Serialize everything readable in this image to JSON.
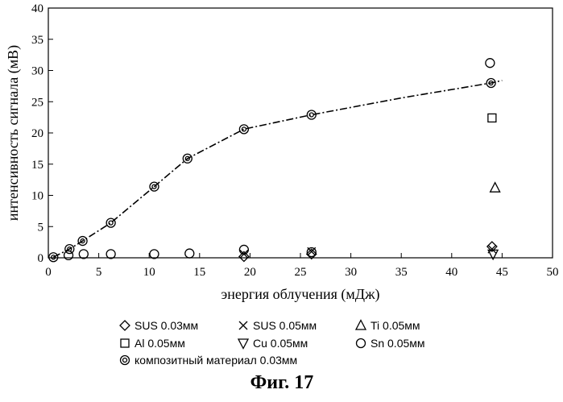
{
  "chart_data": {
    "type": "scatter",
    "title": "",
    "xlabel": "энергия облучения (мДж)",
    "ylabel": "интенсивность сигнала (мВ)",
    "xlim": [
      0,
      50
    ],
    "ylim": [
      0,
      40
    ],
    "x_ticks": [
      "0",
      "5",
      "10",
      "15",
      "20",
      "25",
      "30",
      "35",
      "40",
      "45",
      "50"
    ],
    "y_ticks": [
      "0",
      "5",
      "10",
      "15",
      "20",
      "25",
      "30",
      "35",
      "40"
    ],
    "grid": false,
    "legend_position": "bottom",
    "series": [
      {
        "name": "SUS  0.03мм",
        "marker": "diamond",
        "x": [
          19.4,
          26.1,
          44.0
        ],
        "y": [
          0.2,
          0.6,
          1.8
        ]
      },
      {
        "name": "SUS  0.05мм",
        "marker": "x",
        "x": [
          19.4,
          26.1,
          44.0
        ],
        "y": [
          0.6,
          1.0,
          1.4
        ]
      },
      {
        "name": "Ti  0.05мм",
        "marker": "triangle-up",
        "x": [
          44.3
        ],
        "y": [
          11.2
        ]
      },
      {
        "name": "Al  0.05мм",
        "marker": "square",
        "x": [
          44.0
        ],
        "y": [
          22.4
        ]
      },
      {
        "name": "Cu  0.05мм",
        "marker": "triangle-down",
        "x": [
          44.1
        ],
        "y": [
          0.6
        ]
      },
      {
        "name": "Sn  0.05мм",
        "marker": "circle",
        "x": [
          2.0,
          3.5,
          6.2,
          10.5,
          14.0,
          19.4,
          26.1,
          43.8
        ],
        "y": [
          0.4,
          0.6,
          0.6,
          0.6,
          0.7,
          1.3,
          0.9,
          31.2
        ]
      },
      {
        "name": "композитный материал  0.03мм",
        "marker": "double-circle",
        "x": [
          0.5,
          2.1,
          3.4,
          6.2,
          10.5,
          13.8,
          19.4,
          26.1,
          43.9
        ],
        "y": [
          0.1,
          1.4,
          2.7,
          5.6,
          11.4,
          15.9,
          20.6,
          22.9,
          28.0
        ]
      }
    ],
    "trend_line": {
      "style": "dash-dot",
      "x": [
        0.5,
        2.1,
        3.4,
        6.2,
        10.5,
        13.8,
        19.4,
        26.1,
        35.0,
        43.9,
        45.0
      ],
      "y": [
        0.1,
        1.4,
        2.7,
        5.6,
        11.4,
        15.9,
        20.6,
        22.9,
        25.6,
        28.0,
        28.4
      ]
    },
    "legend_rows": [
      [
        {
          "marker": "diamond",
          "label": "SUS  0.03мм"
        },
        {
          "marker": "x",
          "label": "SUS  0.05мм"
        },
        {
          "marker": "triangle-up",
          "label": "Ti  0.05мм"
        }
      ],
      [
        {
          "marker": "square",
          "label": "Al  0.05мм"
        },
        {
          "marker": "triangle-down",
          "label": "Cu  0.05мм"
        },
        {
          "marker": "circle",
          "label": "Sn  0.05мм"
        }
      ],
      [
        {
          "marker": "double-circle",
          "label": "композитный материал  0.03мм"
        }
      ]
    ],
    "figure_caption": "Фиг. 17"
  }
}
